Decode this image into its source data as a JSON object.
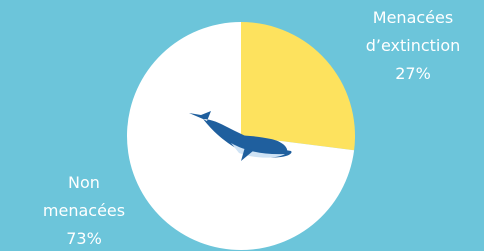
{
  "chart_data": {
    "type": "pie",
    "categories": [
      "Menacées d’extinction",
      "Non menacées"
    ],
    "values": [
      27,
      73
    ],
    "value_labels": [
      "27%",
      "73%"
    ],
    "colors": [
      "#fde25e",
      "#ffffff"
    ]
  }
}
